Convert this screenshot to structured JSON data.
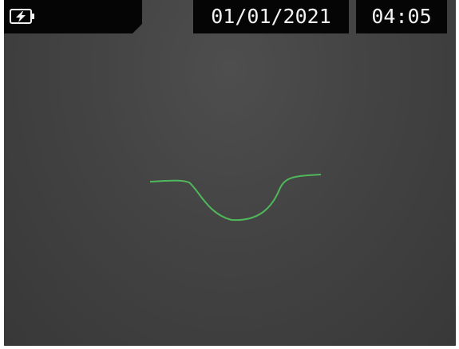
{
  "status_bar": {
    "date": "01/01/2021",
    "time": "04:05"
  }
}
